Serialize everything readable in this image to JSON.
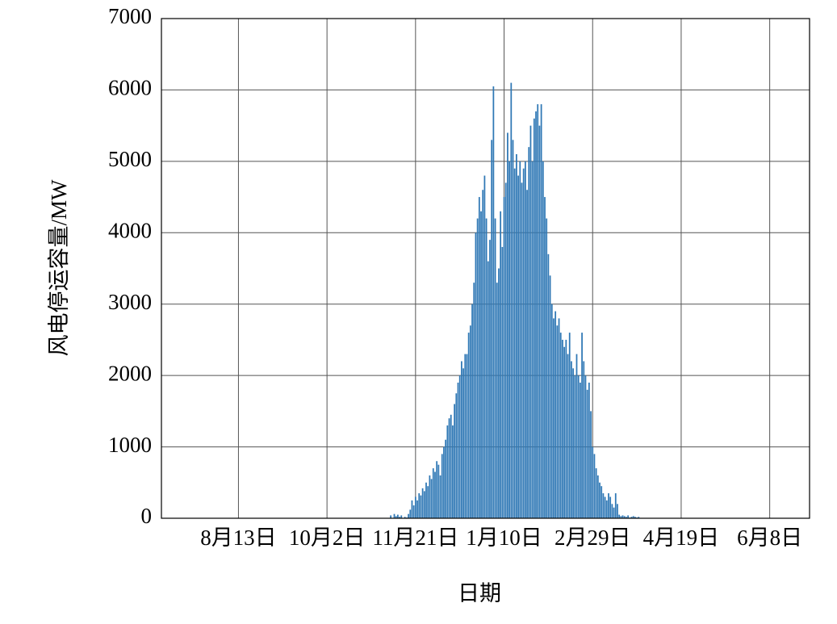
{
  "chart_data": {
    "type": "bar",
    "x_label": "日期",
    "y_label": "风电停运容量/MW",
    "color": "#2f78b5",
    "ylim": [
      0,
      7000
    ],
    "yticks": [
      0,
      1000,
      2000,
      3000,
      4000,
      5000,
      6000,
      7000
    ],
    "grid": true,
    "categories": [
      null,
      null,
      null,
      null,
      null,
      null,
      null,
      null,
      null,
      null,
      null,
      null,
      null,
      null,
      null,
      null,
      null,
      null,
      null,
      null,
      null,
      null,
      null,
      null,
      null,
      null,
      null,
      null,
      null,
      null,
      null,
      null,
      null,
      null,
      null,
      null,
      null,
      null,
      null,
      null,
      null,
      null,
      null,
      "8月13日",
      null,
      null,
      null,
      null,
      null,
      null,
      null,
      null,
      null,
      null,
      null,
      null,
      null,
      null,
      null,
      null,
      null,
      null,
      null,
      null,
      null,
      null,
      null,
      null,
      null,
      null,
      null,
      null,
      null,
      null,
      null,
      null,
      null,
      null,
      null,
      null,
      null,
      null,
      null,
      null,
      null,
      null,
      null,
      null,
      null,
      null,
      null,
      null,
      null,
      "10月2日",
      null,
      null,
      null,
      null,
      null,
      null,
      null,
      null,
      null,
      null,
      null,
      null,
      null,
      null,
      null,
      null,
      null,
      null,
      null,
      null,
      null,
      null,
      null,
      null,
      null,
      null,
      null,
      null,
      null,
      null,
      null,
      null,
      null,
      null,
      null,
      null,
      null,
      null,
      null,
      null,
      null,
      null,
      null,
      null,
      null,
      null,
      null,
      null,
      null,
      "11月21日",
      null,
      null,
      null,
      null,
      null,
      null,
      null,
      null,
      null,
      null,
      null,
      null,
      null,
      null,
      null,
      null,
      null,
      null,
      null,
      null,
      null,
      null,
      null,
      null,
      null,
      null,
      null,
      null,
      null,
      null,
      null,
      null,
      null,
      null,
      null,
      null,
      null,
      null,
      null,
      null,
      null,
      null,
      null,
      null,
      null,
      null,
      null,
      null,
      null,
      "1月10日",
      null,
      null,
      null,
      null,
      null,
      null,
      null,
      null,
      null,
      null,
      null,
      null,
      null,
      null,
      null,
      null,
      null,
      null,
      null,
      null,
      null,
      null,
      null,
      null,
      null,
      null,
      null,
      null,
      null,
      null,
      null,
      null,
      null,
      null,
      null,
      null,
      null,
      null,
      null,
      null,
      null,
      null,
      null,
      null,
      null,
      null,
      null,
      null,
      null,
      "2月29日",
      null,
      null,
      null,
      null,
      null,
      null,
      null,
      null,
      null,
      null,
      null,
      null,
      null,
      null,
      null,
      null,
      null,
      null,
      null,
      null,
      null,
      null,
      null,
      null,
      null,
      null,
      null,
      null,
      null,
      null,
      null,
      null,
      null,
      null,
      null,
      null,
      null,
      null,
      null,
      null,
      null,
      null,
      null,
      null,
      null,
      null,
      null,
      null,
      null,
      "4月19日",
      null,
      null,
      null,
      null,
      null,
      null,
      null,
      null,
      null,
      null,
      null,
      null,
      null,
      null,
      null,
      null,
      null,
      null,
      null,
      null,
      null,
      null,
      null,
      null,
      null,
      null,
      null,
      null,
      null,
      null,
      null,
      null,
      null,
      null,
      null,
      null,
      null,
      null,
      null,
      null,
      null,
      null,
      null,
      null,
      null,
      null,
      null,
      null,
      null,
      "6月8日",
      null,
      null,
      null,
      null,
      null,
      null,
      null,
      null,
      null,
      null,
      null,
      null,
      null,
      null,
      null,
      null,
      null,
      null,
      null,
      null,
      null,
      null
    ],
    "values": [
      0,
      0,
      0,
      0,
      0,
      0,
      0,
      0,
      0,
      0,
      0,
      0,
      0,
      0,
      0,
      0,
      0,
      0,
      0,
      0,
      0,
      0,
      0,
      0,
      0,
      0,
      0,
      0,
      0,
      0,
      0,
      0,
      0,
      0,
      0,
      0,
      0,
      0,
      0,
      0,
      0,
      0,
      0,
      0,
      0,
      0,
      0,
      0,
      0,
      0,
      0,
      0,
      0,
      0,
      0,
      0,
      0,
      0,
      0,
      0,
      0,
      0,
      0,
      0,
      0,
      0,
      0,
      0,
      0,
      0,
      0,
      0,
      0,
      0,
      0,
      0,
      0,
      0,
      0,
      0,
      0,
      0,
      0,
      0,
      0,
      0,
      0,
      0,
      0,
      0,
      0,
      0,
      0,
      0,
      0,
      0,
      0,
      0,
      0,
      0,
      0,
      0,
      0,
      0,
      0,
      0,
      0,
      0,
      0,
      0,
      0,
      0,
      0,
      0,
      0,
      0,
      0,
      0,
      0,
      0,
      0,
      0,
      0,
      0,
      0,
      0,
      0,
      0,
      0,
      40,
      0,
      60,
      30,
      50,
      20,
      40,
      0,
      20,
      10,
      60,
      120,
      250,
      180,
      300,
      250,
      350,
      320,
      420,
      380,
      500,
      450,
      600,
      550,
      700,
      650,
      800,
      750,
      600,
      900,
      1000,
      1100,
      1300,
      1400,
      1450,
      1300,
      1600,
      1750,
      1900,
      2000,
      2200,
      2100,
      2300,
      2300,
      2600,
      2700,
      3000,
      3300,
      4000,
      4200,
      4500,
      4300,
      4600,
      4800,
      4200,
      3600,
      3900,
      5300,
      6050,
      4200,
      3300,
      3500,
      4300,
      3800,
      4500,
      4700,
      5400,
      5000,
      6100,
      5300,
      4900,
      5100,
      4800,
      5000,
      4700,
      4900,
      5000,
      4600,
      5200,
      5500,
      5000,
      5600,
      5700,
      5800,
      5500,
      5800,
      5000,
      4500,
      4200,
      3700,
      3400,
      3000,
      2800,
      2900,
      2700,
      2800,
      2600,
      2500,
      2400,
      2500,
      2300,
      2600,
      2200,
      2100,
      2000,
      2300,
      2000,
      1900,
      2600,
      2200,
      2000,
      1800,
      1900,
      1500,
      1000,
      900,
      700,
      600,
      500,
      450,
      350,
      300,
      250,
      350,
      300,
      200,
      150,
      350,
      200,
      50,
      30,
      40,
      30,
      20,
      40,
      10,
      20,
      30,
      20,
      10,
      20,
      0,
      0,
      0,
      0,
      0,
      0,
      0,
      0,
      0,
      0,
      0,
      0,
      0,
      0,
      0,
      0,
      0,
      0,
      0,
      0,
      0,
      0,
      0,
      0,
      0,
      0,
      0,
      0,
      0,
      0,
      0,
      0,
      0,
      0,
      0,
      0,
      0,
      0,
      0,
      0,
      0,
      0,
      0,
      0,
      0,
      0,
      0,
      0,
      0,
      0,
      0,
      0,
      0,
      0,
      0,
      0,
      0,
      0,
      0,
      0,
      0,
      0,
      0,
      0,
      0,
      0,
      0,
      0,
      0,
      0,
      0,
      0,
      0,
      0,
      0,
      0,
      0,
      0,
      0,
      0,
      0,
      0,
      0,
      0,
      0,
      0,
      0,
      0,
      0,
      0,
      0,
      0,
      0,
      0,
      0,
      0
    ]
  }
}
